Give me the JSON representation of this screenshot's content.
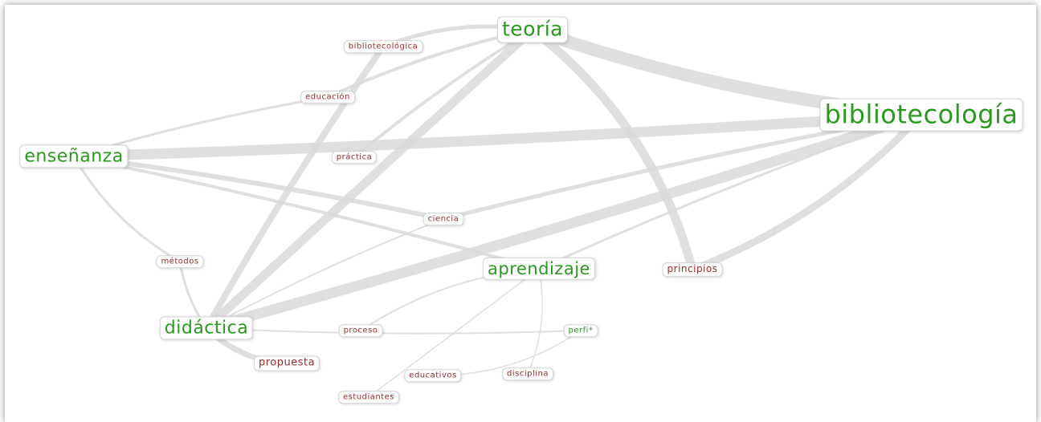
{
  "nodes": [
    {
      "label": "teoría",
      "color": "#2a9a1f"
    },
    {
      "label": "bibliotecología",
      "color": "#2a9a1f"
    },
    {
      "label": "enseñanza",
      "color": "#2a9a1f"
    },
    {
      "label": "didáctica",
      "color": "#2a9a1f"
    },
    {
      "label": "aprendizaje",
      "color": "#2a9a1f"
    },
    {
      "label": "bibliotecológica",
      "color": "#9b2a2a"
    },
    {
      "label": "educación",
      "color": "#9b2a2a"
    },
    {
      "label": "práctica",
      "color": "#9b2a2a"
    },
    {
      "label": "ciencia",
      "color": "#9b2a2a"
    },
    {
      "label": "métodos",
      "color": "#9b2a2a"
    },
    {
      "label": "principios",
      "color": "#9b2a2a"
    },
    {
      "label": "proceso",
      "color": "#9b2a2a"
    },
    {
      "label": "perfi*",
      "color": "#2a9a1f"
    },
    {
      "label": "propuesta",
      "color": "#9b2a2a"
    },
    {
      "label": "educativos",
      "color": "#9b2a2a"
    },
    {
      "label": "disciplina",
      "color": "#9b2a2a"
    },
    {
      "label": "estudiantes",
      "color": "#9b2a2a"
    }
  ]
}
